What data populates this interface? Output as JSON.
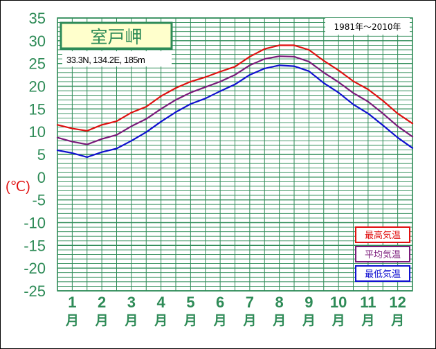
{
  "chart_data": {
    "type": "line",
    "title": "室戸岬",
    "period": "1981年〜2010年",
    "location": "33.3N,  134.2E,  185m",
    "ylabel": "(℃)",
    "ylim": [
      -25,
      35
    ],
    "yticks": [
      35,
      30,
      25,
      20,
      15,
      10,
      5,
      0,
      -5,
      -10,
      -15,
      -20,
      -25
    ],
    "categories": [
      "1",
      "2",
      "3",
      "4",
      "5",
      "6",
      "7",
      "8",
      "9",
      "10",
      "11",
      "12"
    ],
    "month_suffix": "月",
    "grid": true,
    "x": [
      0.0,
      0.5,
      1.0,
      1.5,
      2.0,
      2.5,
      3.0,
      3.5,
      4.0,
      4.5,
      5.0,
      5.5,
      6.0,
      6.5,
      7.0,
      7.5,
      8.0,
      8.5,
      9.0,
      9.5,
      10.0,
      10.5,
      11.0,
      11.5,
      12.0
    ],
    "series": [
      {
        "name": "最高気温",
        "color": "#e01010",
        "values": [
          11.5,
          10.7,
          10.2,
          11.5,
          12.3,
          14.2,
          15.5,
          17.8,
          19.6,
          21.0,
          22.0,
          23.2,
          24.3,
          26.5,
          28.2,
          29.0,
          29.0,
          28.0,
          25.6,
          23.5,
          21.1,
          19.3,
          16.8,
          14.0,
          11.8
        ]
      },
      {
        "name": "平均気温",
        "color": "#7a1a7a",
        "values": [
          8.7,
          7.8,
          7.2,
          8.4,
          9.3,
          11.2,
          12.8,
          15.0,
          17.0,
          18.6,
          19.8,
          21.0,
          22.5,
          24.6,
          26.0,
          26.6,
          26.5,
          25.4,
          23.0,
          20.9,
          18.5,
          16.6,
          14.0,
          11.2,
          8.9
        ]
      },
      {
        "name": "最低気温",
        "color": "#1010d0",
        "values": [
          5.9,
          5.3,
          4.4,
          5.5,
          6.3,
          8.0,
          9.9,
          12.2,
          14.3,
          16.1,
          17.3,
          18.9,
          20.4,
          22.5,
          23.9,
          24.6,
          24.4,
          23.3,
          20.7,
          18.6,
          16.0,
          14.0,
          11.4,
          8.7,
          6.4
        ]
      }
    ],
    "legend_position": "bottom-right"
  }
}
